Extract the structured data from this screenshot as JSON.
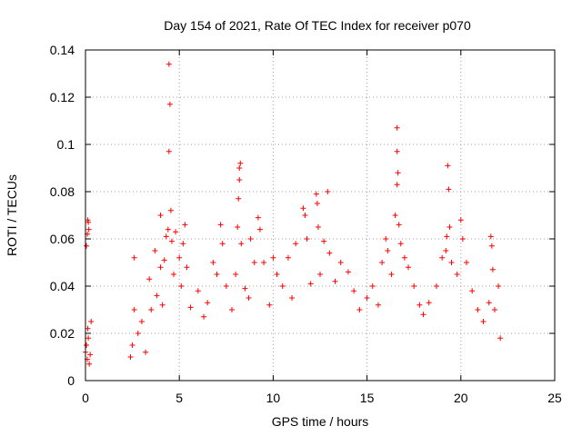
{
  "chart_data": {
    "type": "scatter",
    "title": "Day 154 of 2021, Rate Of TEC Index for receiver p070",
    "xlabel": "GPS time / hours",
    "ylabel": "ROTI / TECUs",
    "xlim": [
      0,
      25
    ],
    "ylim": [
      0,
      0.14
    ],
    "xticks": [
      0,
      5,
      10,
      15,
      20,
      25
    ],
    "yticks": [
      0,
      0.02,
      0.04,
      0.06,
      0.08,
      0.1,
      0.12,
      0.14
    ],
    "xtick_labels": [
      "0",
      "5",
      "10",
      "15",
      "20",
      "25"
    ],
    "ytick_labels": [
      "0",
      "0.02",
      "0.04",
      "0.06",
      "0.08",
      "0.1",
      "0.12",
      "0.14"
    ],
    "grid": true,
    "marker": "+",
    "color": "#ff0000",
    "series": [
      {
        "name": "ROTI",
        "points": [
          [
            0.0,
            0.012
          ],
          [
            0.05,
            0.015
          ],
          [
            0.1,
            0.009
          ],
          [
            0.12,
            0.022
          ],
          [
            0.15,
            0.018
          ],
          [
            0.2,
            0.007
          ],
          [
            0.25,
            0.011
          ],
          [
            0.3,
            0.025
          ],
          [
            0.05,
            0.057
          ],
          [
            0.1,
            0.062
          ],
          [
            0.12,
            0.068
          ],
          [
            0.15,
            0.067
          ],
          [
            0.18,
            0.064
          ],
          [
            2.4,
            0.01
          ],
          [
            2.5,
            0.015
          ],
          [
            2.6,
            0.03
          ],
          [
            2.6,
            0.052
          ],
          [
            2.8,
            0.02
          ],
          [
            3.0,
            0.025
          ],
          [
            3.2,
            0.012
          ],
          [
            3.4,
            0.043
          ],
          [
            3.5,
            0.03
          ],
          [
            3.7,
            0.055
          ],
          [
            3.8,
            0.036
          ],
          [
            4.0,
            0.07
          ],
          [
            4.0,
            0.048
          ],
          [
            4.1,
            0.032
          ],
          [
            4.2,
            0.051
          ],
          [
            4.3,
            0.061
          ],
          [
            4.4,
            0.064
          ],
          [
            4.45,
            0.097
          ],
          [
            4.5,
            0.117
          ],
          [
            4.45,
            0.134
          ],
          [
            4.55,
            0.072
          ],
          [
            4.6,
            0.059
          ],
          [
            4.7,
            0.045
          ],
          [
            4.8,
            0.063
          ],
          [
            5.0,
            0.052
          ],
          [
            5.1,
            0.04
          ],
          [
            5.2,
            0.058
          ],
          [
            5.3,
            0.066
          ],
          [
            5.4,
            0.048
          ],
          [
            5.6,
            0.031
          ],
          [
            6.0,
            0.038
          ],
          [
            6.3,
            0.027
          ],
          [
            6.5,
            0.033
          ],
          [
            6.8,
            0.05
          ],
          [
            7.0,
            0.045
          ],
          [
            7.2,
            0.066
          ],
          [
            7.3,
            0.058
          ],
          [
            7.5,
            0.04
          ],
          [
            7.8,
            0.03
          ],
          [
            8.0,
            0.045
          ],
          [
            8.1,
            0.065
          ],
          [
            8.15,
            0.077
          ],
          [
            8.2,
            0.085
          ],
          [
            8.2,
            0.09
          ],
          [
            8.25,
            0.092
          ],
          [
            8.3,
            0.058
          ],
          [
            8.5,
            0.039
          ],
          [
            8.7,
            0.035
          ],
          [
            8.8,
            0.06
          ],
          [
            9.0,
            0.05
          ],
          [
            9.2,
            0.069
          ],
          [
            9.3,
            0.064
          ],
          [
            9.5,
            0.05
          ],
          [
            9.8,
            0.032
          ],
          [
            10.0,
            0.052
          ],
          [
            10.2,
            0.045
          ],
          [
            10.5,
            0.04
          ],
          [
            10.8,
            0.052
          ],
          [
            11.0,
            0.035
          ],
          [
            11.2,
            0.058
          ],
          [
            11.6,
            0.073
          ],
          [
            11.7,
            0.07
          ],
          [
            11.8,
            0.06
          ],
          [
            12.0,
            0.041
          ],
          [
            12.3,
            0.079
          ],
          [
            12.35,
            0.075
          ],
          [
            12.4,
            0.065
          ],
          [
            12.5,
            0.045
          ],
          [
            12.7,
            0.059
          ],
          [
            12.9,
            0.08
          ],
          [
            13.0,
            0.054
          ],
          [
            13.3,
            0.042
          ],
          [
            13.6,
            0.05
          ],
          [
            14.0,
            0.046
          ],
          [
            14.3,
            0.038
          ],
          [
            14.6,
            0.03
          ],
          [
            15.0,
            0.035
          ],
          [
            15.3,
            0.04
          ],
          [
            15.6,
            0.032
          ],
          [
            15.8,
            0.05
          ],
          [
            16.0,
            0.06
          ],
          [
            16.1,
            0.055
          ],
          [
            16.3,
            0.045
          ],
          [
            16.5,
            0.07
          ],
          [
            16.6,
            0.083
          ],
          [
            16.65,
            0.088
          ],
          [
            16.6,
            0.097
          ],
          [
            16.6,
            0.107
          ],
          [
            16.7,
            0.066
          ],
          [
            16.8,
            0.058
          ],
          [
            17.0,
            0.052
          ],
          [
            17.2,
            0.048
          ],
          [
            17.5,
            0.04
          ],
          [
            17.8,
            0.032
          ],
          [
            18.0,
            0.028
          ],
          [
            18.3,
            0.033
          ],
          [
            18.7,
            0.04
          ],
          [
            19.0,
            0.052
          ],
          [
            19.2,
            0.055
          ],
          [
            19.25,
            0.061
          ],
          [
            19.3,
            0.091
          ],
          [
            19.35,
            0.081
          ],
          [
            19.4,
            0.065
          ],
          [
            19.5,
            0.05
          ],
          [
            19.8,
            0.045
          ],
          [
            20.0,
            0.068
          ],
          [
            20.1,
            0.06
          ],
          [
            20.3,
            0.05
          ],
          [
            20.6,
            0.038
          ],
          [
            20.9,
            0.03
          ],
          [
            21.2,
            0.025
          ],
          [
            21.5,
            0.033
          ],
          [
            21.7,
            0.047
          ],
          [
            21.6,
            0.061
          ],
          [
            21.65,
            0.057
          ],
          [
            21.8,
            0.03
          ],
          [
            22.0,
            0.04
          ],
          [
            22.1,
            0.018
          ]
        ]
      }
    ]
  }
}
